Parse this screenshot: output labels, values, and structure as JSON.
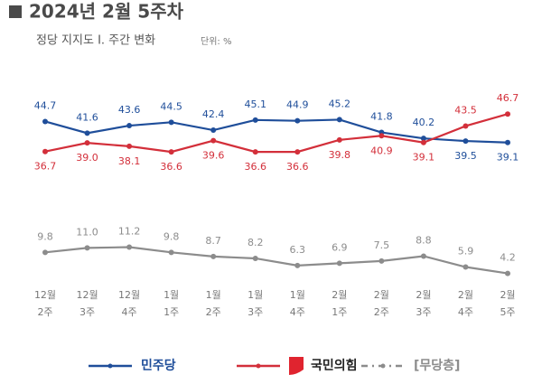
{
  "chart_data": {
    "type": "line",
    "title": "2024년 2월 5주차",
    "subtitle": "정당 지지도 Ⅰ. 주간 변화",
    "unit": "단위: %",
    "categories": [
      "12월\n2주",
      "12월\n3주",
      "12월\n4주",
      "1월\n1주",
      "1월\n2주",
      "1월\n3주",
      "1월\n4주",
      "2월\n1주",
      "2월\n2주",
      "2월\n3주",
      "2월\n4주",
      "2월\n5주"
    ],
    "ylim": [
      0,
      50
    ],
    "series": [
      {
        "name": "민주당",
        "color": "#1f4e9a",
        "values": [
          44.7,
          41.6,
          43.6,
          44.5,
          42.4,
          45.1,
          44.9,
          45.2,
          41.8,
          40.2,
          39.5,
          39.1
        ],
        "value_labels": [
          "44.7",
          "41.6",
          "43.6",
          "44.5",
          "42.4",
          "45.1",
          "44.9",
          "45.2",
          "41.8",
          "40.2",
          "39.5",
          "39.1"
        ]
      },
      {
        "name": "국민의힘",
        "color": "#d32f3a",
        "values": [
          36.7,
          39.0,
          38.1,
          36.6,
          39.6,
          36.6,
          36.6,
          39.8,
          40.9,
          39.1,
          43.5,
          46.7
        ],
        "value_labels": [
          "36.7",
          "39.0",
          "38.1",
          "36.6",
          "39.6",
          "36.6",
          "36.6",
          "39.8",
          "40.9",
          "39.1",
          "43.5",
          "46.7"
        ]
      },
      {
        "name": "[무당층]",
        "color": "#8c8c8c",
        "values": [
          9.8,
          11.0,
          11.2,
          9.8,
          8.7,
          8.2,
          6.3,
          6.9,
          7.5,
          8.8,
          5.9,
          4.2
        ],
        "value_labels": [
          "9.8",
          "11.0",
          "11.2",
          "9.8",
          "8.7",
          "8.2",
          "6.3",
          "6.9",
          "7.5",
          "8.8",
          "5.9",
          "4.2"
        ]
      }
    ]
  }
}
